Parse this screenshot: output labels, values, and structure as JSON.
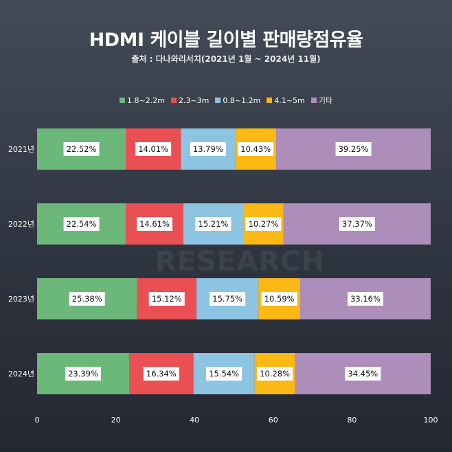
{
  "chart_data": {
    "type": "bar",
    "orientation": "horizontal",
    "stacked": true,
    "title": "HDMI 케이블 길이별 판매량점유율",
    "subtitle": "출처 : 다나와리서치(2021년 1월 ~ 2024년 11월)",
    "categories": [
      "2021년",
      "2022년",
      "2023년",
      "2024년"
    ],
    "series": [
      {
        "name": "1.8~2.2m",
        "color": "#6cb87a",
        "values": [
          22.52,
          22.54,
          25.38,
          23.39
        ]
      },
      {
        "name": "2.3~3m",
        "color": "#ea4f54",
        "values": [
          14.01,
          14.61,
          15.12,
          16.34
        ]
      },
      {
        "name": "0.8~1.2m",
        "color": "#8cc4e2",
        "values": [
          13.79,
          15.21,
          15.75,
          15.54
        ]
      },
      {
        "name": "4.1~5m",
        "color": "#fcb813",
        "values": [
          10.43,
          10.27,
          10.59,
          10.28
        ]
      },
      {
        "name": "기타",
        "color": "#ad8db9",
        "values": [
          39.25,
          37.37,
          33.16,
          34.45
        ]
      }
    ],
    "data_labels": [
      [
        "22.52%",
        "14.01%",
        "13.79%",
        "10.43%",
        "39.25%"
      ],
      [
        "22.54%",
        "14.61%",
        "15.21%",
        "10.27%",
        "37.37%"
      ],
      [
        "25.38%",
        "15.12%",
        "15.75%",
        "10.59%",
        "33.16%"
      ],
      [
        "23.39%",
        "16.34%",
        "15.54%",
        "10.28%",
        "34.45%"
      ]
    ],
    "x_ticks": [
      "0",
      "20",
      "40",
      "60",
      "80",
      "100"
    ],
    "xlim": [
      0,
      100
    ],
    "legend_position": "top",
    "grid": false,
    "watermark": "RESEARCH"
  }
}
